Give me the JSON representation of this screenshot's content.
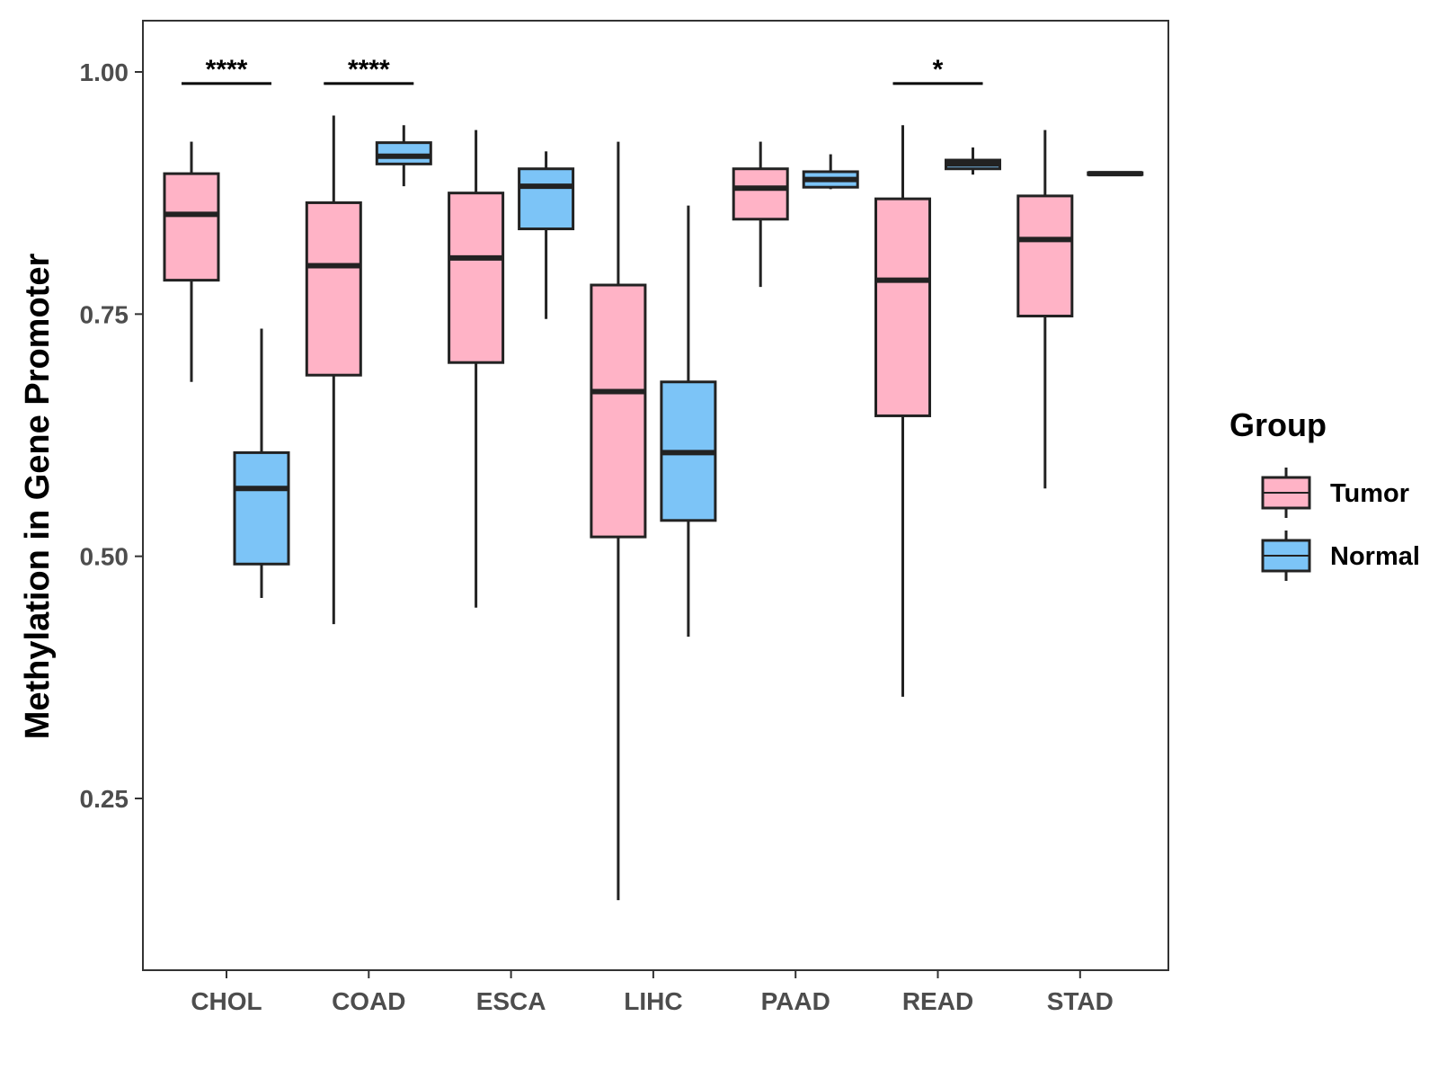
{
  "chart_data": {
    "type": "boxplot",
    "title": "",
    "xlabel": "",
    "ylabel": "Methylation in Gene Promoter",
    "ylim": [
      0.07,
      1.05
    ],
    "yticks": [
      0.25,
      0.5,
      0.75,
      1.0
    ],
    "ytick_labels": [
      "0.25",
      "0.50",
      "0.75",
      "1.00"
    ],
    "categories": [
      "CHOL",
      "COAD",
      "ESCA",
      "LIHC",
      "PAAD",
      "READ",
      "STAD"
    ],
    "legend": {
      "title": "Group",
      "position": "right",
      "entries": [
        {
          "name": "Tumor",
          "color": "#ffb3c6"
        },
        {
          "name": "Normal",
          "color": "#7cc4f7"
        }
      ]
    },
    "series": [
      {
        "name": "Tumor",
        "color": "#ffb3c6",
        "boxes": [
          {
            "category": "CHOL",
            "whisker_low": 0.68,
            "q1": 0.785,
            "median": 0.853,
            "q3": 0.895,
            "whisker_high": 0.928
          },
          {
            "category": "COAD",
            "whisker_low": 0.43,
            "q1": 0.687,
            "median": 0.8,
            "q3": 0.865,
            "whisker_high": 0.955
          },
          {
            "category": "ESCA",
            "whisker_low": 0.447,
            "q1": 0.7,
            "median": 0.808,
            "q3": 0.875,
            "whisker_high": 0.94
          },
          {
            "category": "LIHC",
            "whisker_low": 0.145,
            "q1": 0.52,
            "median": 0.67,
            "q3": 0.78,
            "whisker_high": 0.928
          },
          {
            "category": "PAAD",
            "whisker_low": 0.778,
            "q1": 0.848,
            "median": 0.88,
            "q3": 0.9,
            "whisker_high": 0.928
          },
          {
            "category": "READ",
            "whisker_low": 0.355,
            "q1": 0.645,
            "median": 0.785,
            "q3": 0.869,
            "whisker_high": 0.945
          },
          {
            "category": "STAD",
            "whisker_low": 0.57,
            "q1": 0.748,
            "median": 0.827,
            "q3": 0.872,
            "whisker_high": 0.94
          }
        ]
      },
      {
        "name": "Normal",
        "color": "#7cc4f7",
        "boxes": [
          {
            "category": "CHOL",
            "whisker_low": 0.457,
            "q1": 0.492,
            "median": 0.57,
            "q3": 0.607,
            "whisker_high": 0.735
          },
          {
            "category": "COAD",
            "whisker_low": 0.882,
            "q1": 0.905,
            "median": 0.913,
            "q3": 0.927,
            "whisker_high": 0.945
          },
          {
            "category": "ESCA",
            "whisker_low": 0.745,
            "q1": 0.838,
            "median": 0.882,
            "q3": 0.9,
            "whisker_high": 0.918
          },
          {
            "category": "LIHC",
            "whisker_low": 0.417,
            "q1": 0.537,
            "median": 0.607,
            "q3": 0.68,
            "whisker_high": 0.862
          },
          {
            "category": "PAAD",
            "whisker_low": 0.879,
            "q1": 0.881,
            "median": 0.889,
            "q3": 0.897,
            "whisker_high": 0.915
          },
          {
            "category": "READ",
            "whisker_low": 0.894,
            "q1": 0.9,
            "median": 0.905,
            "q3": 0.909,
            "whisker_high": 0.922
          },
          {
            "category": "STAD",
            "whisker_low": 0.893,
            "q1": 0.894,
            "median": 0.895,
            "q3": 0.896,
            "whisker_high": 0.897
          }
        ]
      }
    ],
    "significance": [
      {
        "category": "CHOL",
        "label": "****",
        "y": 0.988
      },
      {
        "category": "COAD",
        "label": "****",
        "y": 0.988
      },
      {
        "category": "READ",
        "label": "*",
        "y": 0.988
      }
    ]
  }
}
